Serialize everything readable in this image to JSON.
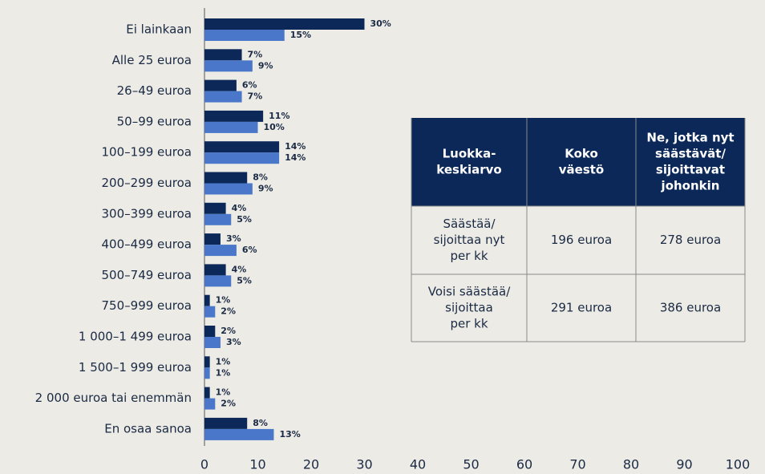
{
  "chart_data": {
    "type": "barh",
    "categories": [
      "Ei lainkaan",
      "Alle 25 euroa",
      "26–49 euroa",
      "50–99 euroa",
      "100–199 euroa",
      "200–299 euroa",
      "300–399 euroa",
      "400–499 euroa",
      "500–749 euroa",
      "750–999 euroa",
      "1 000–1 499 euroa",
      "1 500–1 999 euroa",
      "2 000 euroa tai enemmän",
      "En osaa sanoa"
    ],
    "series": [
      {
        "color": "#0b2858",
        "values": [
          30,
          7,
          6,
          11,
          14,
          8,
          4,
          3,
          4,
          1,
          2,
          1,
          1,
          8
        ],
        "value_labels": [
          "30%",
          "7%",
          "6%",
          "11%",
          "14%",
          "8%",
          "4%",
          "3%",
          "4%",
          "1%",
          "2%",
          "1%",
          "1%",
          "8%"
        ]
      },
      {
        "color": "#4a77c9",
        "values": [
          15,
          9,
          7,
          10,
          14,
          9,
          5,
          6,
          5,
          2,
          3,
          1,
          2,
          13
        ],
        "value_labels": [
          "15%",
          "9%",
          "7%",
          "10%",
          "14%",
          "9%",
          "5%",
          "6%",
          "5%",
          "2%",
          "3%",
          "1%",
          "2%",
          "13%"
        ]
      }
    ],
    "xlim": [
      0,
      100
    ],
    "xticks": [
      0,
      10,
      20,
      30,
      40,
      50,
      60,
      70,
      80,
      90,
      100
    ]
  },
  "table": {
    "header": [
      [
        "Luokka-",
        "keskiarvo"
      ],
      [
        "Koko",
        "väestö"
      ],
      [
        "Ne, jotka nyt",
        "säästävät/",
        "sijoittavat",
        "johonkin"
      ]
    ],
    "rows": [
      [
        [
          "Säästää/",
          "sijoittaa nyt",
          "per kk"
        ],
        [
          "196 euroa"
        ],
        [
          "278 euroa"
        ]
      ],
      [
        [
          "Voisi säästää/",
          "sijoittaa",
          "per kk"
        ],
        [
          "291 euroa"
        ],
        [
          "386 euroa"
        ]
      ]
    ]
  }
}
